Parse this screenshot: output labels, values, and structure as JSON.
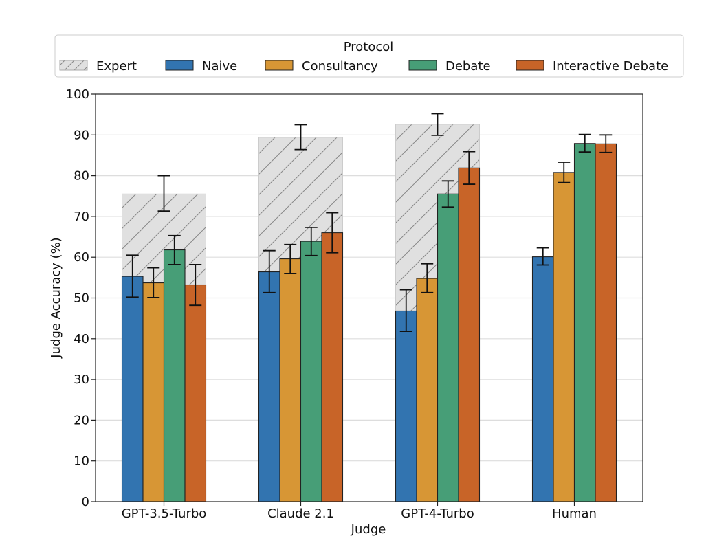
{
  "chart_data": {
    "type": "bar",
    "title": "",
    "xlabel": "Judge",
    "ylabel": "Judge Accuracy (%)",
    "ylim": [
      0,
      100
    ],
    "yticks": [
      0,
      10,
      20,
      30,
      40,
      50,
      60,
      70,
      80,
      90,
      100
    ],
    "grid": "y",
    "categories": [
      "GPT-3.5-Turbo",
      "Claude 2.1",
      "GPT-4-Turbo",
      "Human"
    ],
    "legend": {
      "title": "Protocol",
      "placement": "top-center",
      "entries": [
        "Expert",
        "Naive",
        "Consultancy",
        "Debate",
        "Interactive Debate"
      ]
    },
    "expert": {
      "name": "Expert",
      "color": "#e0e0e0",
      "hatch": "diagonal",
      "values": [
        75.5,
        89.4,
        92.6,
        null
      ],
      "err_low": [
        71.3,
        86.4,
        89.9,
        null
      ],
      "err_high": [
        80.0,
        92.5,
        95.2,
        null
      ]
    },
    "series": [
      {
        "name": "Naive",
        "color": "#3274b0",
        "values": [
          55.3,
          56.4,
          46.8,
          60.1
        ],
        "err_low": [
          50.2,
          51.3,
          41.8,
          58.1
        ],
        "err_high": [
          60.5,
          61.6,
          52.0,
          62.3
        ]
      },
      {
        "name": "Consultancy",
        "color": "#d79635",
        "values": [
          53.7,
          59.6,
          54.8,
          80.8
        ],
        "err_low": [
          50.1,
          56.0,
          51.3,
          78.3
        ],
        "err_high": [
          57.4,
          63.1,
          58.4,
          83.3
        ]
      },
      {
        "name": "Debate",
        "color": "#479e77",
        "values": [
          61.8,
          63.9,
          75.5,
          87.9
        ],
        "err_low": [
          58.2,
          60.4,
          72.3,
          85.8
        ],
        "err_high": [
          65.3,
          67.3,
          78.7,
          90.1
        ]
      },
      {
        "name": "Interactive Debate",
        "color": "#c86428",
        "values": [
          53.2,
          66.0,
          81.9,
          87.8
        ],
        "err_low": [
          48.2,
          61.1,
          77.9,
          85.7
        ],
        "err_high": [
          58.2,
          70.9,
          85.9,
          90.0
        ]
      }
    ]
  }
}
